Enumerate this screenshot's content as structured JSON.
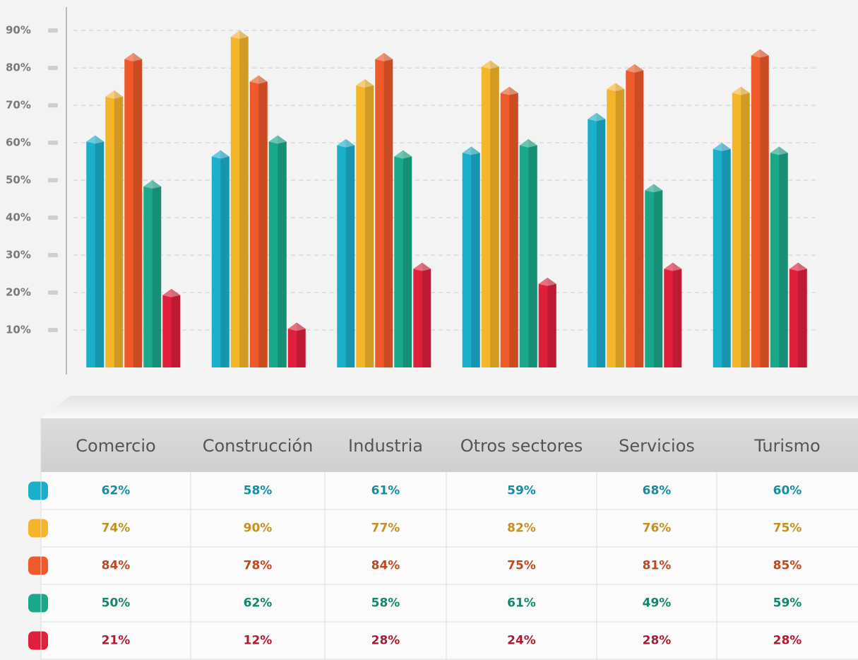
{
  "chart_data": {
    "type": "bar",
    "categories": [
      "Comercio",
      "Construcción",
      "Industria",
      "Otros sectores",
      "Servicios",
      "Turismo"
    ],
    "series": [
      {
        "color": "#1ab0cc",
        "values": [
          62,
          58,
          61,
          59,
          68,
          60
        ],
        "value_labels": [
          "62%",
          "58%",
          "61%",
          "59%",
          "68%",
          "60%"
        ]
      },
      {
        "color": "#f5b52a",
        "values": [
          74,
          90,
          77,
          82,
          76,
          75
        ],
        "value_labels": [
          "74%",
          "90%",
          "77%",
          "82%",
          "76%",
          "75%"
        ]
      },
      {
        "color": "#ef5a2a",
        "values": [
          84,
          78,
          84,
          75,
          81,
          85
        ],
        "value_labels": [
          "84%",
          "78%",
          "84%",
          "75%",
          "81%",
          "85%"
        ]
      },
      {
        "color": "#1aa88a",
        "values": [
          50,
          62,
          58,
          61,
          49,
          59
        ],
        "value_labels": [
          "50%",
          "62%",
          "58%",
          "61%",
          "49%",
          "59%"
        ]
      },
      {
        "color": "#e01f3d",
        "values": [
          21,
          12,
          28,
          24,
          28,
          28
        ],
        "value_labels": [
          "21%",
          "12%",
          "28%",
          "24%",
          "28%",
          "28%"
        ]
      }
    ],
    "ylim": [
      0,
      97
    ],
    "yticks": [
      {
        "value": 10,
        "label": "10%"
      },
      {
        "value": 20,
        "label": "20%"
      },
      {
        "value": 30,
        "label": "30%"
      },
      {
        "value": 40,
        "label": "40%"
      },
      {
        "value": 50,
        "label": "50%"
      },
      {
        "value": 60,
        "label": "60%"
      },
      {
        "value": 70,
        "label": "70%"
      },
      {
        "value": 80,
        "label": "80%"
      },
      {
        "value": 90,
        "label": "90%"
      }
    ],
    "grid": true
  }
}
